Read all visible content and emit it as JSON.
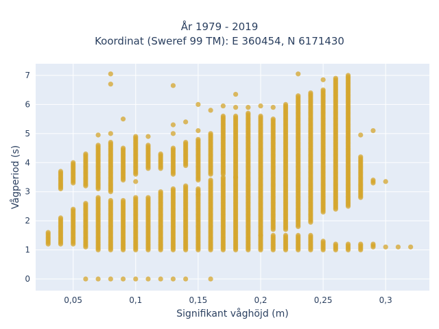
{
  "chart_data": {
    "type": "scatter",
    "title_lines": [
      "År 1979 - 2019",
      "Koordinat (Sweref 99 TM): E 360454, N 6171430"
    ],
    "xlabel": "Signifikant våghöjd (m)",
    "ylabel": "Vågperiod (s)",
    "xlim": [
      0.02,
      0.335
    ],
    "ylim": [
      -0.4,
      7.4
    ],
    "xticks": [
      0.05,
      0.1,
      0.15,
      0.2,
      0.25,
      0.3
    ],
    "xtick_labels": [
      "0,05",
      "0,1",
      "0,15",
      "0,2",
      "0,25",
      "0,3"
    ],
    "yticks": [
      0,
      1,
      2,
      3,
      4,
      5,
      6,
      7
    ],
    "ytick_labels": [
      "0",
      "1",
      "2",
      "3",
      "4",
      "5",
      "6",
      "7"
    ],
    "grid": true,
    "marker_color": "#d4a52c",
    "plot_bg": "#e5ecf6",
    "series": [
      {
        "columns": [
          {
            "x": 0.03,
            "y_ranges": [
              [
                1.2,
                1.6
              ]
            ]
          },
          {
            "x": 0.04,
            "y_ranges": [
              [
                1.2,
                2.1
              ],
              [
                3.1,
                3.7
              ]
            ]
          },
          {
            "x": 0.05,
            "y_ranges": [
              [
                1.2,
                2.4
              ],
              [
                3.3,
                4.0
              ]
            ]
          },
          {
            "x": 0.06,
            "y_ranges": [
              [
                1.1,
                2.6
              ],
              [
                3.2,
                4.3
              ]
            ],
            "y_points": [
              0
            ]
          },
          {
            "x": 0.07,
            "y_ranges": [
              [
                1.0,
                2.8
              ],
              [
                3.1,
                4.6
              ]
            ],
            "y_points": [
              0,
              4.95
            ]
          },
          {
            "x": 0.08,
            "y_ranges": [
              [
                1.0,
                2.7
              ],
              [
                3.0,
                4.7
              ]
            ],
            "y_points": [
              0,
              5.0,
              6.7,
              7.05
            ]
          },
          {
            "x": 0.09,
            "y_ranges": [
              [
                1.0,
                2.7
              ],
              [
                3.4,
                4.5
              ]
            ],
            "y_points": [
              0,
              5.5
            ]
          },
          {
            "x": 0.1,
            "y_ranges": [
              [
                1.0,
                2.8
              ],
              [
                3.6,
                4.9
              ]
            ],
            "y_points": [
              0,
              3.35
            ]
          },
          {
            "x": 0.11,
            "y_ranges": [
              [
                1.0,
                2.8
              ],
              [
                3.8,
                4.6
              ]
            ],
            "y_points": [
              0,
              4.9
            ]
          },
          {
            "x": 0.12,
            "y_ranges": [
              [
                1.0,
                3.0
              ],
              [
                3.8,
                4.3
              ]
            ],
            "y_points": [
              0
            ]
          },
          {
            "x": 0.13,
            "y_ranges": [
              [
                1.0,
                3.1
              ],
              [
                3.6,
                4.5
              ]
            ],
            "y_points": [
              0,
              5.0,
              5.3,
              6.65
            ]
          },
          {
            "x": 0.14,
            "y_ranges": [
              [
                1.0,
                3.2
              ],
              [
                3.9,
                4.7
              ]
            ],
            "y_points": [
              0,
              5.4
            ]
          },
          {
            "x": 0.15,
            "y_ranges": [
              [
                1.0,
                3.1
              ],
              [
                3.4,
                4.8
              ]
            ],
            "y_points": [
              2.9,
              5.1,
              6.0
            ]
          },
          {
            "x": 0.16,
            "y_ranges": [
              [
                1.0,
                3.4
              ],
              [
                3.6,
                5.0
              ]
            ],
            "y_points": [
              0,
              5.8
            ]
          },
          {
            "x": 0.17,
            "y_ranges": [
              [
                1.0,
                3.5
              ],
              [
                3.6,
                5.6
              ]
            ],
            "y_points": [
              5.95
            ]
          },
          {
            "x": 0.18,
            "y_ranges": [
              [
                1.0,
                3.5
              ],
              [
                3.5,
                5.6
              ]
            ],
            "y_points": [
              5.9,
              6.35
            ]
          },
          {
            "x": 0.19,
            "y_ranges": [
              [
                1.0,
                5.7
              ]
            ],
            "y_points": [
              5.9
            ]
          },
          {
            "x": 0.2,
            "y_ranges": [
              [
                1.0,
                1.5
              ],
              [
                1.5,
                5.6
              ]
            ],
            "y_points": [
              5.95
            ]
          },
          {
            "x": 0.21,
            "y_ranges": [
              [
                1.0,
                1.5
              ],
              [
                1.7,
                5.5
              ]
            ],
            "y_points": [
              5.9
            ]
          },
          {
            "x": 0.22,
            "y_ranges": [
              [
                1.0,
                1.5
              ],
              [
                1.7,
                6.0
              ]
            ]
          },
          {
            "x": 0.23,
            "y_ranges": [
              [
                1.0,
                1.5
              ],
              [
                1.8,
                6.3
              ]
            ],
            "y_points": [
              7.05
            ]
          },
          {
            "x": 0.24,
            "y_ranges": [
              [
                1.0,
                1.5
              ],
              [
                2.0,
                6.4
              ]
            ],
            "y_points": [
              1.95
            ]
          },
          {
            "x": 0.25,
            "y_ranges": [
              [
                1.0,
                1.3
              ],
              [
                2.3,
                6.5
              ]
            ],
            "y_points": [
              6.85
            ]
          },
          {
            "x": 0.26,
            "y_ranges": [
              [
                1.0,
                1.2
              ],
              [
                2.4,
                6.9
              ]
            ]
          },
          {
            "x": 0.27,
            "y_ranges": [
              [
                1.0,
                1.2
              ],
              [
                2.5,
                7.0
              ]
            ]
          },
          {
            "x": 0.28,
            "y_ranges": [
              [
                1.0,
                1.2
              ],
              [
                2.8,
                4.2
              ]
            ],
            "y_points": [
              4.95
            ]
          },
          {
            "x": 0.29,
            "y_ranges": [
              [
                1.1,
                1.2
              ],
              [
                3.3,
                3.4
              ]
            ],
            "y_points": [
              5.1
            ]
          },
          {
            "x": 0.3,
            "y_points": [
              1.1,
              3.35
            ]
          },
          {
            "x": 0.31,
            "y_points": [
              1.1
            ]
          },
          {
            "x": 0.32,
            "y_points": [
              1.1
            ]
          }
        ]
      }
    ]
  }
}
